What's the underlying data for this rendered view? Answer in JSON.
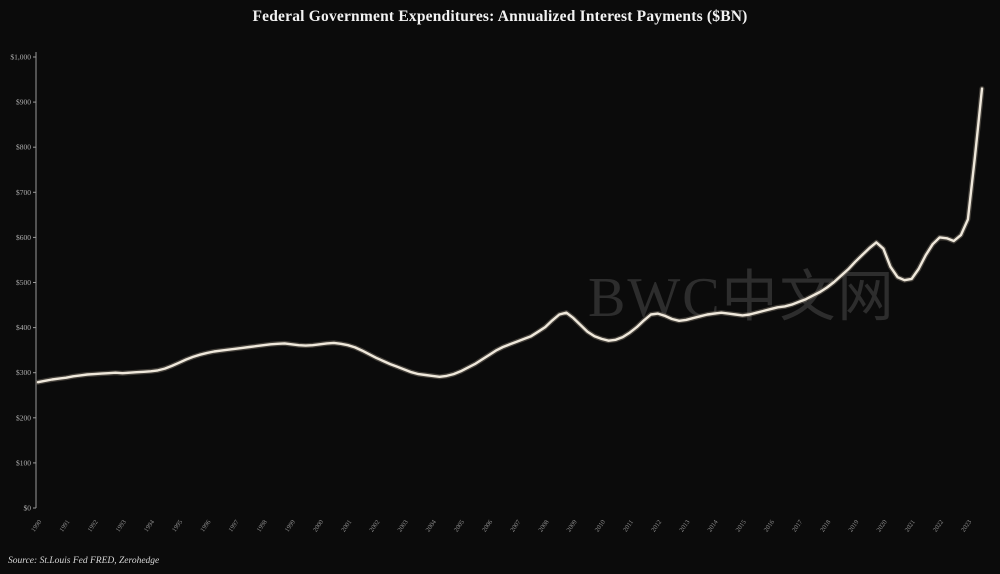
{
  "title": "Federal Government Expenditures: Annualized Interest Payments ($BN)",
  "source_note": "Source: St.Louis Fed FRED, Zerohedge",
  "watermark": "BWC中文网",
  "colors": {
    "background": "#0b0b0b",
    "line": "#efe8db",
    "line_halo": "#8a8073",
    "axis": "#9a9a9a",
    "tick_text": "#b0b0b0",
    "x_tick_text": "#8f8f8f",
    "title_text": "#f2f2f2",
    "watermark_text": "rgba(255,255,255,0.14)"
  },
  "chart_data": {
    "type": "line",
    "title": "Federal Government Expenditures: Annualized Interest Payments ($BN)",
    "xlabel": "",
    "ylabel": "",
    "grid": false,
    "legend": "none",
    "ylim": [
      0,
      1000
    ],
    "y_tick_values": [
      0,
      100,
      200,
      300,
      400,
      500,
      600,
      700,
      800,
      900,
      1000
    ],
    "y_tick_labels": [
      "$0",
      "$100",
      "$200",
      "$300",
      "$400",
      "$500",
      "$600",
      "$700",
      "$800",
      "$900",
      "$1,000"
    ],
    "x_range": [
      1990,
      2023.5
    ],
    "x_tick_years": [
      1990,
      1991,
      1992,
      1993,
      1994,
      1995,
      1996,
      1997,
      1998,
      1999,
      2000,
      2001,
      2002,
      2003,
      2004,
      2005,
      2006,
      2007,
      2008,
      2009,
      2010,
      2011,
      2012,
      2013,
      2014,
      2015,
      2016,
      2017,
      2018,
      2019,
      2020,
      2021,
      2022,
      2023
    ],
    "x_tick_labels": [
      "1990",
      "1991",
      "1992",
      "1993",
      "1994",
      "1995",
      "1996",
      "1997",
      "1998",
      "1999",
      "2000",
      "2001",
      "2002",
      "2003",
      "2004",
      "2005",
      "2006",
      "2007",
      "2008",
      "2009",
      "2010",
      "2011",
      "2012",
      "2013",
      "2014",
      "2015",
      "2016",
      "2017",
      "2018",
      "2019",
      "2020",
      "2021",
      "2022",
      "2023"
    ],
    "series": [
      {
        "name": "Annualized Interest Payments ($BN)",
        "x_start": 1990.0,
        "x_step": 0.25,
        "values": [
          279,
          282,
          285,
          287,
          289,
          292,
          294,
          296,
          297,
          298,
          299,
          300,
          299,
          300,
          301,
          302,
          303,
          305,
          309,
          315,
          322,
          329,
          335,
          340,
          344,
          347,
          349,
          351,
          353,
          355,
          357,
          359,
          361,
          363,
          364,
          365,
          363,
          361,
          360,
          361,
          363,
          365,
          366,
          364,
          361,
          356,
          349,
          341,
          333,
          326,
          319,
          313,
          307,
          301,
          297,
          295,
          293,
          291,
          293,
          297,
          303,
          311,
          319,
          329,
          339,
          349,
          357,
          363,
          369,
          375,
          381,
          391,
          401,
          416,
          429,
          433,
          421,
          406,
          391,
          381,
          375,
          371,
          373,
          379,
          389,
          401,
          416,
          429,
          431,
          426,
          419,
          415,
          417,
          421,
          425,
          429,
          431,
          433,
          431,
          429,
          427,
          429,
          433,
          437,
          441,
          445,
          447,
          451,
          457,
          463,
          471,
          479,
          489,
          501,
          515,
          529,
          546,
          561,
          576,
          589,
          575,
          535,
          512,
          505,
          508,
          530,
          560,
          585,
          600,
          598,
          592,
          605,
          640,
          780,
          930
        ]
      }
    ]
  }
}
